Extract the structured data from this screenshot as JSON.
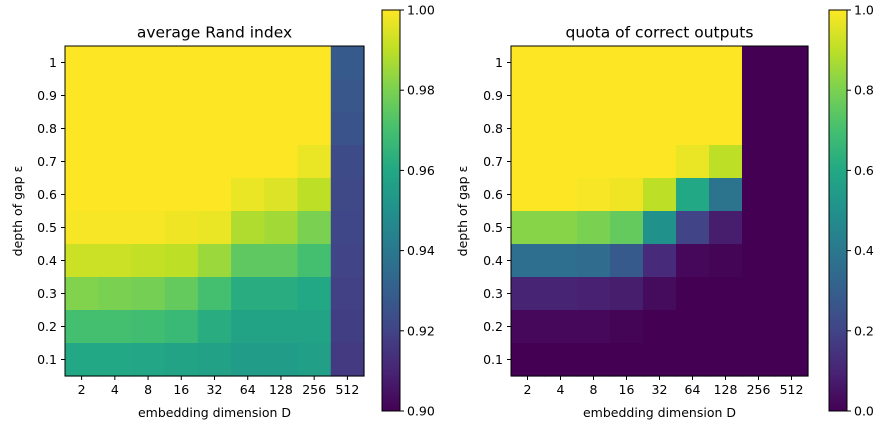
{
  "chart_data": [
    {
      "type": "heatmap",
      "title": "average Rand index",
      "xlabel": "embedding dimension D",
      "ylabel": "depth of gap ε",
      "x_categories": [
        "2",
        "4",
        "8",
        "16",
        "32",
        "64",
        "128",
        "256",
        "512"
      ],
      "y_categories": [
        "0.1",
        "0.2",
        "0.3",
        "0.4",
        "0.5",
        "0.6",
        "0.7",
        "0.8",
        "0.9",
        "1"
      ],
      "colorbar": {
        "range": [
          0.9,
          1.0
        ],
        "ticks": [
          0.9,
          0.92,
          0.94,
          0.96,
          0.98,
          1.0
        ],
        "tick_labels": [
          "0.90",
          "0.92",
          "0.94",
          "0.96",
          "0.98",
          "1.00"
        ],
        "colormap": "viridis"
      },
      "values_rows_top_to_bottom": [
        [
          1.0,
          1.0,
          1.0,
          1.0,
          1.0,
          1.0,
          1.0,
          1.0,
          0.928
        ],
        [
          1.0,
          1.0,
          1.0,
          1.0,
          1.0,
          1.0,
          1.0,
          1.0,
          0.927
        ],
        [
          1.0,
          1.0,
          1.0,
          1.0,
          1.0,
          1.0,
          1.0,
          1.0,
          0.926
        ],
        [
          1.0,
          1.0,
          1.0,
          1.0,
          1.0,
          1.0,
          1.0,
          0.997,
          0.923
        ],
        [
          1.0,
          1.0,
          1.0,
          1.0,
          1.0,
          0.997,
          0.995,
          0.99,
          0.922
        ],
        [
          0.999,
          0.999,
          0.999,
          0.998,
          0.997,
          0.988,
          0.986,
          0.98,
          0.921
        ],
        [
          0.992,
          0.992,
          0.991,
          0.99,
          0.985,
          0.975,
          0.975,
          0.97,
          0.92
        ],
        [
          0.981,
          0.98,
          0.979,
          0.976,
          0.97,
          0.962,
          0.962,
          0.96,
          0.919
        ],
        [
          0.97,
          0.97,
          0.969,
          0.967,
          0.962,
          0.958,
          0.958,
          0.958,
          0.918
        ],
        [
          0.96,
          0.96,
          0.959,
          0.958,
          0.957,
          0.955,
          0.955,
          0.956,
          0.917
        ]
      ]
    },
    {
      "type": "heatmap",
      "title": "quota of correct outputs",
      "xlabel": "embedding dimension D",
      "ylabel": "depth of gap ε",
      "x_categories": [
        "2",
        "4",
        "8",
        "16",
        "32",
        "64",
        "128",
        "256",
        "512"
      ],
      "y_categories": [
        "0.1",
        "0.2",
        "0.3",
        "0.4",
        "0.5",
        "0.6",
        "0.7",
        "0.8",
        "0.9",
        "1"
      ],
      "colorbar": {
        "range": [
          0.0,
          1.0
        ],
        "ticks": [
          0.0,
          0.2,
          0.4,
          0.6,
          0.8,
          1.0
        ],
        "tick_labels": [
          "0.0",
          "0.2",
          "0.4",
          "0.6",
          "0.8",
          "1.0"
        ],
        "colormap": "viridis"
      },
      "values_rows_top_to_bottom": [
        [
          1.0,
          1.0,
          1.0,
          1.0,
          1.0,
          1.0,
          1.0,
          0.0,
          0.0
        ],
        [
          1.0,
          1.0,
          1.0,
          1.0,
          1.0,
          1.0,
          1.0,
          0.0,
          0.0
        ],
        [
          1.0,
          1.0,
          1.0,
          1.0,
          1.0,
          1.0,
          1.0,
          0.0,
          0.0
        ],
        [
          1.0,
          1.0,
          1.0,
          1.0,
          1.0,
          0.97,
          0.9,
          0.0,
          0.0
        ],
        [
          1.0,
          1.0,
          0.99,
          0.98,
          0.9,
          0.6,
          0.38,
          0.0,
          0.0
        ],
        [
          0.82,
          0.82,
          0.8,
          0.76,
          0.5,
          0.2,
          0.08,
          0.0,
          0.0
        ],
        [
          0.36,
          0.36,
          0.35,
          0.28,
          0.12,
          0.02,
          0.01,
          0.0,
          0.0
        ],
        [
          0.1,
          0.1,
          0.09,
          0.08,
          0.03,
          0.0,
          0.0,
          0.0,
          0.0
        ],
        [
          0.02,
          0.02,
          0.02,
          0.01,
          0.0,
          0.0,
          0.0,
          0.0,
          0.0
        ],
        [
          0.0,
          0.0,
          0.0,
          0.0,
          0.0,
          0.0,
          0.0,
          0.0,
          0.0
        ]
      ]
    }
  ]
}
